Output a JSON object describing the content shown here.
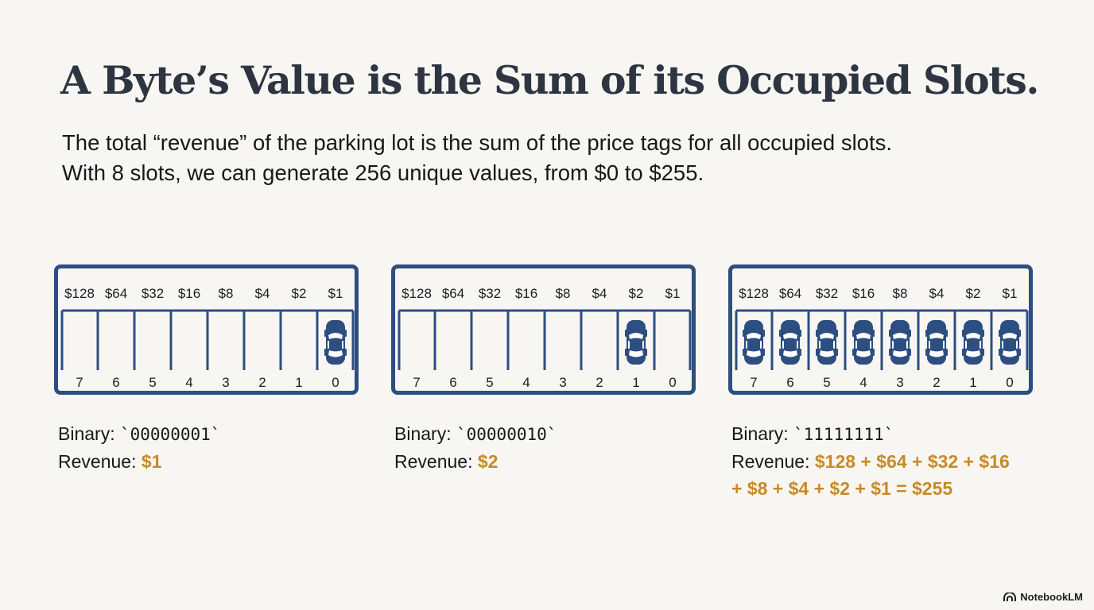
{
  "title": "A Byte’s Value is the Sum of its Occupied Slots.",
  "subtitle": {
    "line1": "The total “revenue” of the parking lot is the sum of the price tags for all occupied slots.",
    "line2": "With 8 slots, we can generate 256 unique values, from $0 to $255."
  },
  "colors": {
    "lot_border": "#2d4e80",
    "car": "#2d4e80",
    "revenue": "#c98a24",
    "title": "#2e3441"
  },
  "lots": [
    {
      "prices": [
        "$128",
        "$64",
        "$32",
        "$16",
        "$8",
        "$4",
        "$2",
        "$1"
      ],
      "indices": [
        "7",
        "6",
        "5",
        "4",
        "3",
        "2",
        "1",
        "0"
      ],
      "occupied": [
        false,
        false,
        false,
        false,
        false,
        false,
        false,
        true
      ],
      "binary_label": "Binary: ",
      "binary_value": "`00000001`",
      "revenue_label": "Revenue: ",
      "revenue_value": "$1"
    },
    {
      "prices": [
        "$128",
        "$64",
        "$32",
        "$16",
        "$8",
        "$4",
        "$2",
        "$1"
      ],
      "indices": [
        "7",
        "6",
        "5",
        "4",
        "3",
        "2",
        "1",
        "0"
      ],
      "occupied": [
        false,
        false,
        false,
        false,
        false,
        false,
        true,
        false
      ],
      "binary_label": "Binary: ",
      "binary_value": "`00000010`",
      "revenue_label": "Revenue: ",
      "revenue_value": "$2"
    },
    {
      "prices": [
        "$128",
        "$64",
        "$32",
        "$16",
        "$8",
        "$4",
        "$2",
        "$1"
      ],
      "indices": [
        "7",
        "6",
        "5",
        "4",
        "3",
        "2",
        "1",
        "0"
      ],
      "occupied": [
        true,
        true,
        true,
        true,
        true,
        true,
        true,
        true
      ],
      "binary_label": "Binary: ",
      "binary_value": "`11111111`",
      "revenue_label": "Revenue: ",
      "revenue_value": "$128 + $64 + $32 + $16",
      "revenue_value_line2": "+ $8 + $4 + $2 + $1 = $255"
    }
  ],
  "car_icon": "car-top-view-icon",
  "brand": {
    "icon": "notebooklm-logo-icon",
    "label": "NotebookLM"
  }
}
